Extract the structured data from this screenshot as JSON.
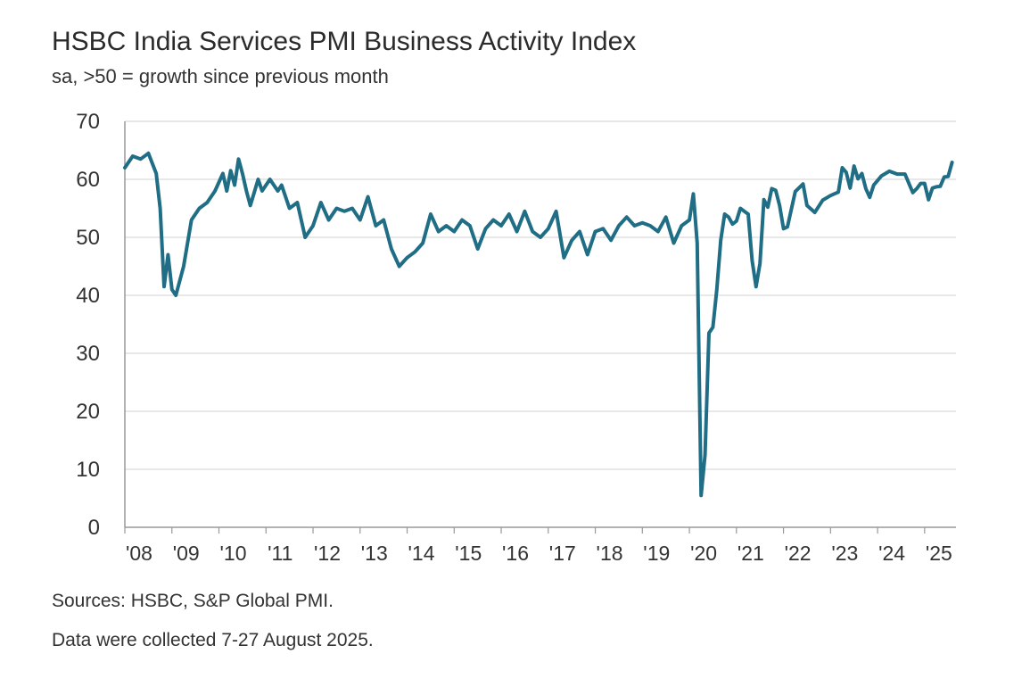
{
  "chart_data": {
    "type": "line",
    "title": "HSBC India Services PMI Business Activity Index",
    "subtitle": "sa, >50 = growth since previous month",
    "xlabel": "",
    "ylabel": "",
    "ylim": [
      0,
      70
    ],
    "yticks": [
      0,
      10,
      20,
      30,
      40,
      50,
      60,
      70
    ],
    "xlim": [
      "2008-01",
      "2025-09"
    ],
    "xtick_labels": [
      "'08",
      "'09",
      "'10",
      "'11",
      "'12",
      "'13",
      "'14",
      "'15",
      "'16",
      "'17",
      "'18",
      "'19",
      "'20",
      "'21",
      "'22",
      "'23",
      "'24",
      "'25"
    ],
    "grid": true,
    "legend": "none",
    "color": "#1f6e85",
    "series": [
      {
        "name": "",
        "x": [
          "2008-01",
          "2008-03",
          "2008-05",
          "2008-07",
          "2008-09",
          "2008-10",
          "2008-11",
          "2008-12",
          "2009-01",
          "2009-02",
          "2009-04",
          "2009-06",
          "2009-08",
          "2009-10",
          "2009-12",
          "2010-02",
          "2010-03",
          "2010-04",
          "2010-05",
          "2010-06",
          "2010-07",
          "2010-08",
          "2010-09",
          "2010-11",
          "2010-12",
          "2011-02",
          "2011-04",
          "2011-05",
          "2011-07",
          "2011-09",
          "2011-11",
          "2012-01",
          "2012-03",
          "2012-05",
          "2012-07",
          "2012-09",
          "2012-11",
          "2013-01",
          "2013-03",
          "2013-05",
          "2013-07",
          "2013-09",
          "2013-11",
          "2014-01",
          "2014-03",
          "2014-05",
          "2014-07",
          "2014-09",
          "2014-11",
          "2015-01",
          "2015-03",
          "2015-05",
          "2015-07",
          "2015-09",
          "2015-11",
          "2016-01",
          "2016-03",
          "2016-05",
          "2016-07",
          "2016-09",
          "2016-11",
          "2017-01",
          "2017-03",
          "2017-05",
          "2017-07",
          "2017-09",
          "2017-11",
          "2018-01",
          "2018-03",
          "2018-05",
          "2018-07",
          "2018-09",
          "2018-11",
          "2019-01",
          "2019-03",
          "2019-05",
          "2019-07",
          "2019-09",
          "2019-11",
          "2020-01",
          "2020-02",
          "2020-03",
          "2020-04",
          "2020-05",
          "2020-06",
          "2020-07",
          "2020-08",
          "2020-09",
          "2020-10",
          "2020-11",
          "2020-12",
          "2021-01",
          "2021-02",
          "2021-03",
          "2021-04",
          "2021-05",
          "2021-06",
          "2021-07",
          "2021-08",
          "2021-09",
          "2021-10",
          "2021-11",
          "2021-12",
          "2022-01",
          "2022-02",
          "2022-04",
          "2022-06",
          "2022-07",
          "2022-09",
          "2022-11",
          "2023-01",
          "2023-03",
          "2023-04",
          "2023-05",
          "2023-06",
          "2023-07",
          "2023-08",
          "2023-09",
          "2023-10",
          "2023-11",
          "2023-12",
          "2024-02",
          "2024-04",
          "2024-06",
          "2024-08",
          "2024-10",
          "2024-11",
          "2024-12",
          "2025-01",
          "2025-02",
          "2025-03",
          "2025-04",
          "2025-05",
          "2025-06",
          "2025-07",
          "2025-08"
        ],
        "values": [
          62,
          64,
          63.5,
          64.5,
          61,
          55,
          41.5,
          47,
          41,
          40,
          45,
          53,
          55,
          56,
          58,
          61,
          58,
          61.5,
          59,
          63.5,
          61,
          58,
          55.5,
          60,
          58,
          60,
          58,
          59,
          55,
          56,
          50,
          52,
          56,
          53,
          55,
          54.5,
          55,
          53,
          57,
          52,
          53,
          48,
          45,
          46.5,
          47.5,
          49,
          54,
          51,
          52,
          51,
          53,
          52,
          48,
          51.5,
          53,
          52,
          54,
          51,
          54.5,
          51,
          50,
          51.5,
          54.5,
          46.5,
          49.5,
          51,
          47,
          51,
          51.5,
          49.5,
          52,
          53.5,
          52,
          52.5,
          52,
          51,
          53.5,
          49,
          52,
          53,
          57.5,
          49,
          5.5,
          12.5,
          33.5,
          34.5,
          41,
          49.5,
          54,
          53.5,
          52.3,
          52.8,
          55,
          54.5,
          54,
          46,
          41.5,
          45.5,
          56.5,
          55.2,
          58.4,
          58.1,
          55.5,
          51.5,
          51.8,
          57.9,
          59.2,
          55.5,
          54.3,
          56.4,
          57.2,
          57.8,
          62.0,
          61.2,
          58.5,
          62.3,
          60.1,
          61.0,
          58.4,
          56.9,
          59.0,
          60.6,
          61.4,
          60.9,
          60.9,
          57.7,
          58.4,
          59.3,
          59.3,
          56.5,
          58.5,
          58.7,
          58.8,
          60.4,
          60.5,
          62.9
        ]
      }
    ]
  },
  "footer": {
    "sources": "Sources: HSBC, S&P Global PMI.",
    "note": "Data were collected 7-27 August 2025."
  }
}
